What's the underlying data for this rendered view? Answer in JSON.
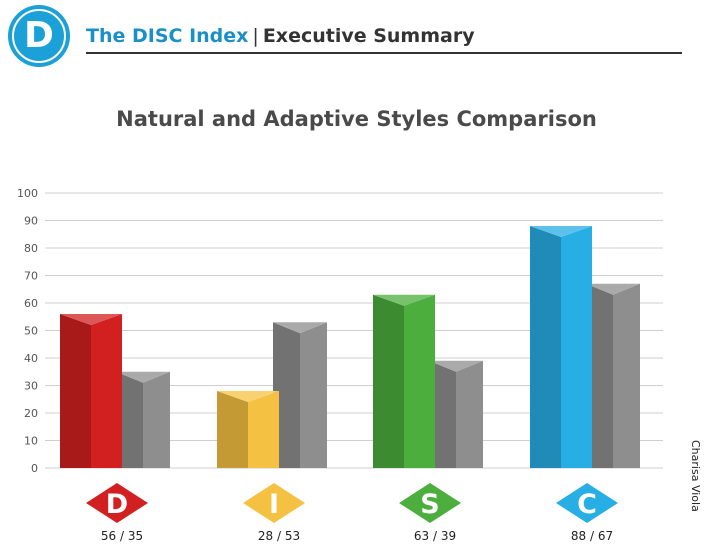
{
  "header": {
    "logo_letter": "D",
    "brand": "The DISC Index",
    "separator": "|",
    "section": "Executive Summary"
  },
  "side_name": "Charisa Viola",
  "colors": {
    "brand": "#1a8fc8",
    "D": "#d21f1f",
    "I": "#f5c142",
    "S": "#4cae3c",
    "C": "#27aee4",
    "adaptive": "#8e8e8e"
  },
  "chart_data": {
    "type": "bar",
    "title": "Natural and Adaptive Styles Comparison",
    "categories": [
      "D",
      "I",
      "S",
      "C"
    ],
    "series": [
      {
        "values": [
          56,
          28,
          63,
          88
        ]
      },
      {
        "values": [
          35,
          53,
          39,
          67
        ]
      }
    ],
    "value_labels": [
      "56 / 35",
      "28 / 53",
      "63 / 39",
      "88 / 67"
    ],
    "ylim": [
      0,
      100
    ],
    "yticks": [
      0,
      10,
      20,
      30,
      40,
      50,
      60,
      70,
      80,
      90,
      100
    ],
    "grid": true
  }
}
